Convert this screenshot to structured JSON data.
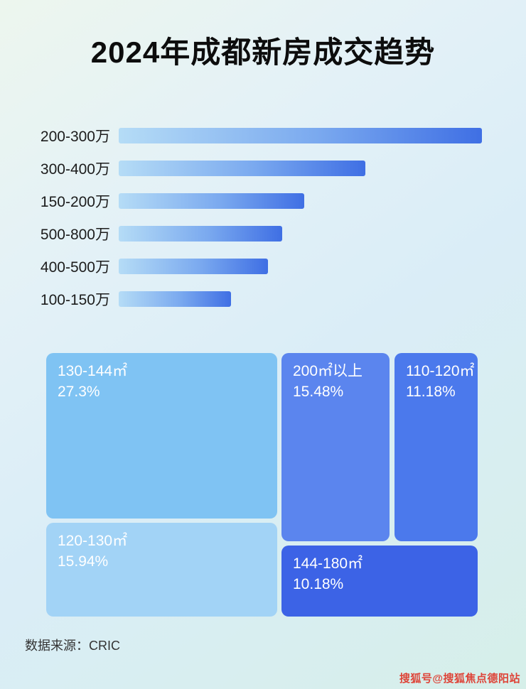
{
  "title": "2024年成都新房成交趋势",
  "chart_data": [
    {
      "type": "bar",
      "orientation": "horizontal",
      "title": "2024年成都新房成交趋势",
      "categories": [
        "200-300万",
        "300-400万",
        "150-200万",
        "500-800万",
        "400-500万",
        "100-150万"
      ],
      "values": [
        100,
        68,
        51,
        45,
        41,
        31
      ],
      "value_note": "bars unlabeled; values estimated as percent of longest bar width",
      "xlabel": "",
      "ylabel": "",
      "grid": false,
      "legend": false,
      "bar_gradient": [
        "#b5dcf6",
        "#3f6fe4"
      ]
    },
    {
      "type": "treemap",
      "title": "",
      "items": [
        {
          "label": "130-144㎡",
          "pct": "27.3%",
          "value": 27.3,
          "color": "#7fc3f3"
        },
        {
          "label": "200㎡以上",
          "pct": "15.48%",
          "value": 15.48,
          "color": "#5b85ee"
        },
        {
          "label": "110-120㎡",
          "pct": "11.18%",
          "value": 11.18,
          "color": "#4b79ec"
        },
        {
          "label": "120-130㎡",
          "pct": "15.94%",
          "value": 15.94,
          "color": "#a2d3f6"
        },
        {
          "label": "144-180㎡",
          "pct": "10.18%",
          "value": 10.18,
          "color": "#3c63e6"
        }
      ],
      "legend": false
    }
  ],
  "footer": {
    "source": "数据来源：CRIC"
  },
  "watermark": {
    "text": "搜狐号@搜狐焦点德阳站",
    "color": "#de4438"
  }
}
